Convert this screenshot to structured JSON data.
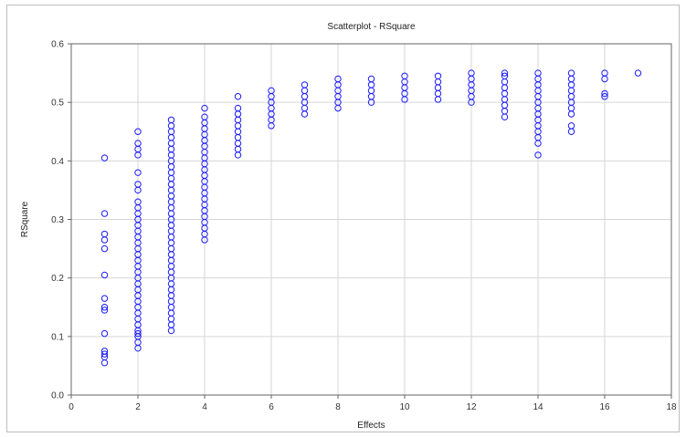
{
  "chart_data": {
    "type": "scatter",
    "title": "Scatterplot - RSquare",
    "xlabel": "Effects",
    "ylabel": "RSquare",
    "xlim": [
      0,
      18
    ],
    "ylim": [
      0.0,
      0.6
    ],
    "xticks": [
      0,
      2,
      4,
      6,
      8,
      10,
      12,
      14,
      16,
      18
    ],
    "yticks": [
      "0.0",
      "0.1",
      "0.2",
      "0.3",
      "0.4",
      "0.5",
      "0.6"
    ],
    "grid": true,
    "marker": "open-circle",
    "colors": {
      "marker": "#1a1aff",
      "grid": "#d6d6d6",
      "axis": "#666666"
    },
    "points": [
      {
        "x": 1,
        "y": 0.055
      },
      {
        "x": 1,
        "y": 0.065
      },
      {
        "x": 1,
        "y": 0.07
      },
      {
        "x": 1,
        "y": 0.075
      },
      {
        "x": 1,
        "y": 0.105
      },
      {
        "x": 1,
        "y": 0.145
      },
      {
        "x": 1,
        "y": 0.15
      },
      {
        "x": 1,
        "y": 0.165
      },
      {
        "x": 1,
        "y": 0.205
      },
      {
        "x": 1,
        "y": 0.25
      },
      {
        "x": 1,
        "y": 0.265
      },
      {
        "x": 1,
        "y": 0.275
      },
      {
        "x": 1,
        "y": 0.31
      },
      {
        "x": 1,
        "y": 0.405
      },
      {
        "x": 2,
        "y": 0.08
      },
      {
        "x": 2,
        "y": 0.09
      },
      {
        "x": 2,
        "y": 0.1
      },
      {
        "x": 2,
        "y": 0.105
      },
      {
        "x": 2,
        "y": 0.11
      },
      {
        "x": 2,
        "y": 0.12
      },
      {
        "x": 2,
        "y": 0.13
      },
      {
        "x": 2,
        "y": 0.14
      },
      {
        "x": 2,
        "y": 0.15
      },
      {
        "x": 2,
        "y": 0.16
      },
      {
        "x": 2,
        "y": 0.17
      },
      {
        "x": 2,
        "y": 0.18
      },
      {
        "x": 2,
        "y": 0.19
      },
      {
        "x": 2,
        "y": 0.2
      },
      {
        "x": 2,
        "y": 0.21
      },
      {
        "x": 2,
        "y": 0.22
      },
      {
        "x": 2,
        "y": 0.23
      },
      {
        "x": 2,
        "y": 0.24
      },
      {
        "x": 2,
        "y": 0.25
      },
      {
        "x": 2,
        "y": 0.26
      },
      {
        "x": 2,
        "y": 0.27
      },
      {
        "x": 2,
        "y": 0.28
      },
      {
        "x": 2,
        "y": 0.29
      },
      {
        "x": 2,
        "y": 0.3
      },
      {
        "x": 2,
        "y": 0.31
      },
      {
        "x": 2,
        "y": 0.32
      },
      {
        "x": 2,
        "y": 0.33
      },
      {
        "x": 2,
        "y": 0.35
      },
      {
        "x": 2,
        "y": 0.36
      },
      {
        "x": 2,
        "y": 0.38
      },
      {
        "x": 2,
        "y": 0.41
      },
      {
        "x": 2,
        "y": 0.42
      },
      {
        "x": 2,
        "y": 0.43
      },
      {
        "x": 2,
        "y": 0.45
      },
      {
        "x": 3,
        "y": 0.11
      },
      {
        "x": 3,
        "y": 0.12
      },
      {
        "x": 3,
        "y": 0.13
      },
      {
        "x": 3,
        "y": 0.14
      },
      {
        "x": 3,
        "y": 0.15
      },
      {
        "x": 3,
        "y": 0.16
      },
      {
        "x": 3,
        "y": 0.17
      },
      {
        "x": 3,
        "y": 0.18
      },
      {
        "x": 3,
        "y": 0.19
      },
      {
        "x": 3,
        "y": 0.2
      },
      {
        "x": 3,
        "y": 0.21
      },
      {
        "x": 3,
        "y": 0.22
      },
      {
        "x": 3,
        "y": 0.23
      },
      {
        "x": 3,
        "y": 0.24
      },
      {
        "x": 3,
        "y": 0.25
      },
      {
        "x": 3,
        "y": 0.26
      },
      {
        "x": 3,
        "y": 0.27
      },
      {
        "x": 3,
        "y": 0.28
      },
      {
        "x": 3,
        "y": 0.29
      },
      {
        "x": 3,
        "y": 0.3
      },
      {
        "x": 3,
        "y": 0.31
      },
      {
        "x": 3,
        "y": 0.32
      },
      {
        "x": 3,
        "y": 0.33
      },
      {
        "x": 3,
        "y": 0.34
      },
      {
        "x": 3,
        "y": 0.35
      },
      {
        "x": 3,
        "y": 0.36
      },
      {
        "x": 3,
        "y": 0.37
      },
      {
        "x": 3,
        "y": 0.38
      },
      {
        "x": 3,
        "y": 0.39
      },
      {
        "x": 3,
        "y": 0.4
      },
      {
        "x": 3,
        "y": 0.41
      },
      {
        "x": 3,
        "y": 0.42
      },
      {
        "x": 3,
        "y": 0.43
      },
      {
        "x": 3,
        "y": 0.44
      },
      {
        "x": 3,
        "y": 0.45
      },
      {
        "x": 3,
        "y": 0.46
      },
      {
        "x": 3,
        "y": 0.47
      },
      {
        "x": 4,
        "y": 0.265
      },
      {
        "x": 4,
        "y": 0.275
      },
      {
        "x": 4,
        "y": 0.285
      },
      {
        "x": 4,
        "y": 0.295
      },
      {
        "x": 4,
        "y": 0.305
      },
      {
        "x": 4,
        "y": 0.315
      },
      {
        "x": 4,
        "y": 0.325
      },
      {
        "x": 4,
        "y": 0.335
      },
      {
        "x": 4,
        "y": 0.345
      },
      {
        "x": 4,
        "y": 0.355
      },
      {
        "x": 4,
        "y": 0.365
      },
      {
        "x": 4,
        "y": 0.375
      },
      {
        "x": 4,
        "y": 0.385
      },
      {
        "x": 4,
        "y": 0.395
      },
      {
        "x": 4,
        "y": 0.405
      },
      {
        "x": 4,
        "y": 0.415
      },
      {
        "x": 4,
        "y": 0.425
      },
      {
        "x": 4,
        "y": 0.435
      },
      {
        "x": 4,
        "y": 0.445
      },
      {
        "x": 4,
        "y": 0.455
      },
      {
        "x": 4,
        "y": 0.465
      },
      {
        "x": 4,
        "y": 0.475
      },
      {
        "x": 4,
        "y": 0.49
      },
      {
        "x": 5,
        "y": 0.41
      },
      {
        "x": 5,
        "y": 0.42
      },
      {
        "x": 5,
        "y": 0.43
      },
      {
        "x": 5,
        "y": 0.44
      },
      {
        "x": 5,
        "y": 0.45
      },
      {
        "x": 5,
        "y": 0.46
      },
      {
        "x": 5,
        "y": 0.47
      },
      {
        "x": 5,
        "y": 0.48
      },
      {
        "x": 5,
        "y": 0.49
      },
      {
        "x": 5,
        "y": 0.51
      },
      {
        "x": 6,
        "y": 0.46
      },
      {
        "x": 6,
        "y": 0.47
      },
      {
        "x": 6,
        "y": 0.48
      },
      {
        "x": 6,
        "y": 0.49
      },
      {
        "x": 6,
        "y": 0.5
      },
      {
        "x": 6,
        "y": 0.51
      },
      {
        "x": 6,
        "y": 0.52
      },
      {
        "x": 7,
        "y": 0.48
      },
      {
        "x": 7,
        "y": 0.49
      },
      {
        "x": 7,
        "y": 0.5
      },
      {
        "x": 7,
        "y": 0.51
      },
      {
        "x": 7,
        "y": 0.52
      },
      {
        "x": 7,
        "y": 0.53
      },
      {
        "x": 8,
        "y": 0.49
      },
      {
        "x": 8,
        "y": 0.5
      },
      {
        "x": 8,
        "y": 0.51
      },
      {
        "x": 8,
        "y": 0.52
      },
      {
        "x": 8,
        "y": 0.53
      },
      {
        "x": 8,
        "y": 0.54
      },
      {
        "x": 9,
        "y": 0.5
      },
      {
        "x": 9,
        "y": 0.51
      },
      {
        "x": 9,
        "y": 0.52
      },
      {
        "x": 9,
        "y": 0.53
      },
      {
        "x": 9,
        "y": 0.54
      },
      {
        "x": 10,
        "y": 0.505
      },
      {
        "x": 10,
        "y": 0.515
      },
      {
        "x": 10,
        "y": 0.525
      },
      {
        "x": 10,
        "y": 0.535
      },
      {
        "x": 10,
        "y": 0.545
      },
      {
        "x": 11,
        "y": 0.505
      },
      {
        "x": 11,
        "y": 0.515
      },
      {
        "x": 11,
        "y": 0.525
      },
      {
        "x": 11,
        "y": 0.535
      },
      {
        "x": 11,
        "y": 0.545
      },
      {
        "x": 12,
        "y": 0.5
      },
      {
        "x": 12,
        "y": 0.51
      },
      {
        "x": 12,
        "y": 0.52
      },
      {
        "x": 12,
        "y": 0.53
      },
      {
        "x": 12,
        "y": 0.54
      },
      {
        "x": 12,
        "y": 0.55
      },
      {
        "x": 13,
        "y": 0.475
      },
      {
        "x": 13,
        "y": 0.485
      },
      {
        "x": 13,
        "y": 0.495
      },
      {
        "x": 13,
        "y": 0.505
      },
      {
        "x": 13,
        "y": 0.515
      },
      {
        "x": 13,
        "y": 0.525
      },
      {
        "x": 13,
        "y": 0.535
      },
      {
        "x": 13,
        "y": 0.545
      },
      {
        "x": 13,
        "y": 0.55
      },
      {
        "x": 14,
        "y": 0.41
      },
      {
        "x": 14,
        "y": 0.43
      },
      {
        "x": 14,
        "y": 0.44
      },
      {
        "x": 14,
        "y": 0.45
      },
      {
        "x": 14,
        "y": 0.46
      },
      {
        "x": 14,
        "y": 0.47
      },
      {
        "x": 14,
        "y": 0.48
      },
      {
        "x": 14,
        "y": 0.49
      },
      {
        "x": 14,
        "y": 0.5
      },
      {
        "x": 14,
        "y": 0.51
      },
      {
        "x": 14,
        "y": 0.52
      },
      {
        "x": 14,
        "y": 0.53
      },
      {
        "x": 14,
        "y": 0.54
      },
      {
        "x": 14,
        "y": 0.55
      },
      {
        "x": 15,
        "y": 0.45
      },
      {
        "x": 15,
        "y": 0.46
      },
      {
        "x": 15,
        "y": 0.48
      },
      {
        "x": 15,
        "y": 0.49
      },
      {
        "x": 15,
        "y": 0.5
      },
      {
        "x": 15,
        "y": 0.51
      },
      {
        "x": 15,
        "y": 0.52
      },
      {
        "x": 15,
        "y": 0.53
      },
      {
        "x": 15,
        "y": 0.54
      },
      {
        "x": 15,
        "y": 0.55
      },
      {
        "x": 16,
        "y": 0.51
      },
      {
        "x": 16,
        "y": 0.515
      },
      {
        "x": 16,
        "y": 0.54
      },
      {
        "x": 16,
        "y": 0.55
      },
      {
        "x": 17,
        "y": 0.55
      }
    ]
  }
}
